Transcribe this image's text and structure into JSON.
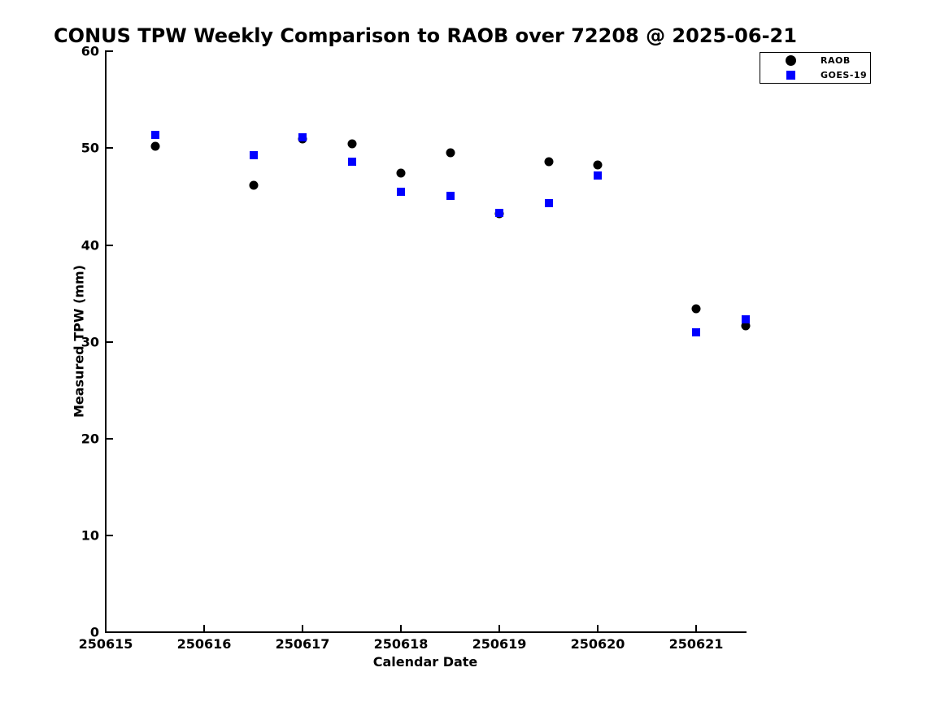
{
  "chart_data": {
    "type": "scatter",
    "title": "CONUS TPW Weekly Comparison to RAOB over 72208 @ 2025-06-21",
    "xlabel": "Calendar Date",
    "ylabel": "Measured TPW (mm)",
    "xlim": [
      250615,
      250621.5
    ],
    "ylim": [
      0,
      60
    ],
    "xtick_values": [
      250615,
      250616,
      250617,
      250618,
      250619,
      250620,
      250621
    ],
    "xtick_labels": [
      "250615",
      "250616",
      "250617",
      "250618",
      "250619",
      "250620",
      "250621"
    ],
    "ytick_values": [
      0,
      10,
      20,
      30,
      40,
      50,
      60
    ],
    "ytick_labels": [
      "0",
      "10",
      "20",
      "30",
      "40",
      "50",
      "60"
    ],
    "grid": false,
    "legend_position": "top-right",
    "legend": {
      "entries": [
        {
          "label": "RAOB",
          "marker": "circle",
          "color": "#000000"
        },
        {
          "label": "GOES-19",
          "marker": "square",
          "color": "#0000ff"
        }
      ]
    },
    "series": [
      {
        "name": "RAOB",
        "marker": "circle",
        "color": "#000000",
        "points": [
          [
            250615.5,
            50.2
          ],
          [
            250616.5,
            46.2
          ],
          [
            250617.0,
            51.0
          ],
          [
            250617.5,
            50.5
          ],
          [
            250618.0,
            47.4
          ],
          [
            250618.5,
            49.5
          ],
          [
            250619.0,
            43.2
          ],
          [
            250619.5,
            48.6
          ],
          [
            250620.0,
            48.3
          ],
          [
            250621.0,
            33.4
          ],
          [
            250621.5,
            31.7
          ]
        ]
      },
      {
        "name": "GOES-19",
        "marker": "square",
        "color": "#0000ff",
        "points": [
          [
            250615.5,
            51.4
          ],
          [
            250616.5,
            49.3
          ],
          [
            250617.0,
            51.1
          ],
          [
            250617.5,
            48.6
          ],
          [
            250618.0,
            45.5
          ],
          [
            250618.5,
            45.1
          ],
          [
            250619.0,
            43.3
          ],
          [
            250619.5,
            44.3
          ],
          [
            250620.0,
            47.2
          ],
          [
            250621.0,
            31.0
          ],
          [
            250621.5,
            32.3
          ]
        ]
      }
    ]
  }
}
